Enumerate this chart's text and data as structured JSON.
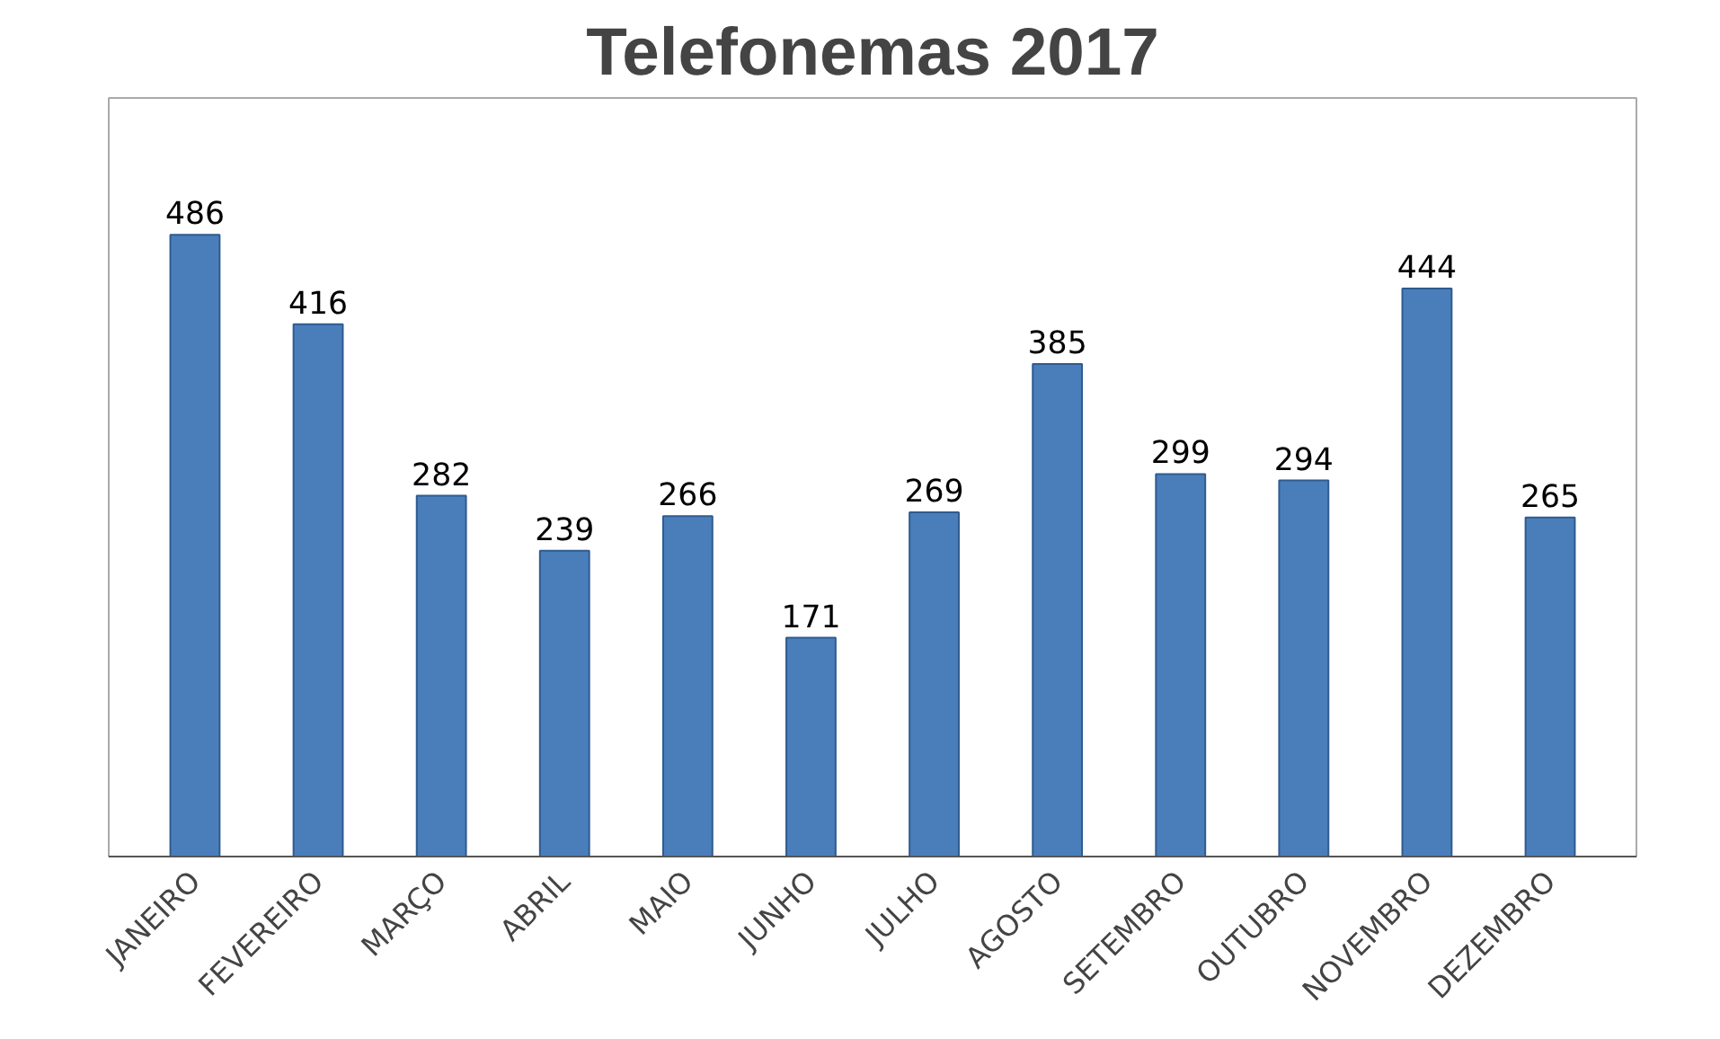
{
  "chart_data": {
    "type": "bar",
    "title": "Telefonemas 2017",
    "categories": [
      "JANEIRO",
      "FEVEREIRO",
      "MARÇO",
      "ABRIL",
      "MAIO",
      "JUNHO",
      "JULHO",
      "AGOSTO",
      "SETEMBRO",
      "OUTUBRO",
      "NOVEMBRO",
      "DEZEMBRO"
    ],
    "values": [
      486,
      416,
      282,
      239,
      266,
      171,
      269,
      385,
      299,
      294,
      444,
      265
    ],
    "color": "#4a7ebb",
    "data_labels": true
  }
}
